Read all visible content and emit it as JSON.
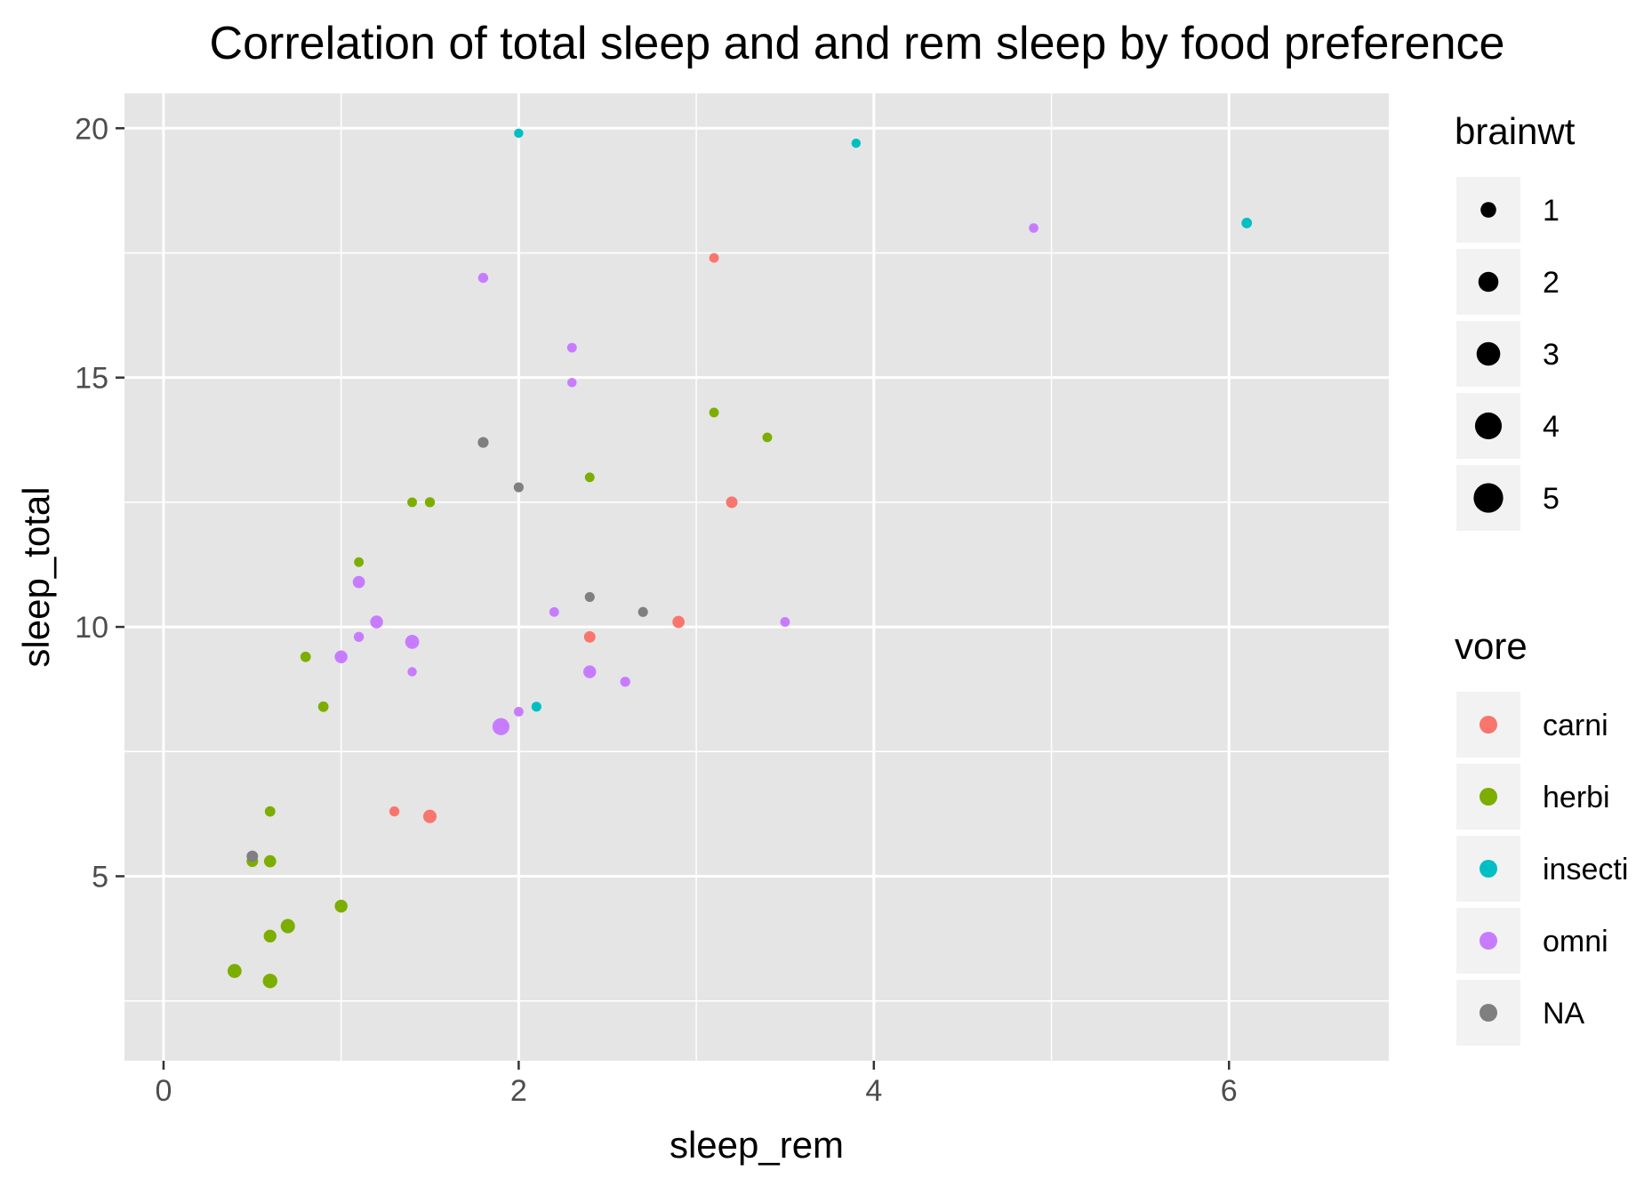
{
  "chart_data": {
    "type": "scatter",
    "title": "Correlation of total sleep and and rem sleep by food preference",
    "xlabel": "sleep_rem",
    "ylabel": "sleep_total",
    "xlim": [
      -0.22,
      6.9
    ],
    "ylim": [
      1.3,
      20.7
    ],
    "x_ticks": [
      0,
      2,
      4,
      6
    ],
    "y_ticks": [
      5,
      10,
      15,
      20
    ],
    "x_tick_labels": [
      "0",
      "2",
      "4",
      "6"
    ],
    "y_tick_labels": [
      "5",
      "10",
      "15",
      "20"
    ],
    "grid": true,
    "background": "#e5e5e5",
    "legend_position": "right",
    "size_legend": {
      "title": "brainwt",
      "values": [
        1,
        2,
        3,
        4,
        5
      ],
      "labels": [
        "1",
        "2",
        "3",
        "4",
        "5"
      ]
    },
    "color_legend": {
      "title": "vore",
      "categories": [
        "carni",
        "herbi",
        "insecti",
        "omni",
        "NA"
      ],
      "colors": [
        "#F8766D",
        "#7CAE00",
        "#00BFC4",
        "#C77CFF",
        "#7F7F7F"
      ]
    },
    "series": [
      {
        "name": "carni",
        "points": [
          {
            "x": 3.1,
            "y": 17.4,
            "brainwt": 0.04
          },
          {
            "x": 3.2,
            "y": 12.5,
            "brainwt": 0.3
          },
          {
            "x": 2.9,
            "y": 10.1,
            "brainwt": 0.4
          },
          {
            "x": 2.4,
            "y": 9.8,
            "brainwt": 0.3
          },
          {
            "x": 1.3,
            "y": 6.3,
            "brainwt": 0.1
          },
          {
            "x": 1.5,
            "y": 6.2,
            "brainwt": 0.6
          }
        ]
      },
      {
        "name": "herbi",
        "points": [
          {
            "x": 3.1,
            "y": 14.3,
            "brainwt": 0.05
          },
          {
            "x": 3.4,
            "y": 13.8,
            "brainwt": 0.05
          },
          {
            "x": 2.4,
            "y": 13.0,
            "brainwt": 0.05
          },
          {
            "x": 1.4,
            "y": 12.5,
            "brainwt": 0.05
          },
          {
            "x": 1.5,
            "y": 12.5,
            "brainwt": 0.1
          },
          {
            "x": 1.1,
            "y": 11.3,
            "brainwt": 0.05
          },
          {
            "x": 0.8,
            "y": 9.4,
            "brainwt": 0.15
          },
          {
            "x": 0.9,
            "y": 8.4,
            "brainwt": 0.15
          },
          {
            "x": 0.6,
            "y": 6.3,
            "brainwt": 0.15
          },
          {
            "x": 0.5,
            "y": 5.3,
            "brainwt": 0.3
          },
          {
            "x": 0.6,
            "y": 5.3,
            "brainwt": 0.4
          },
          {
            "x": 1.0,
            "y": 4.4,
            "brainwt": 0.5
          },
          {
            "x": 0.7,
            "y": 4.0,
            "brainwt": 0.75
          },
          {
            "x": 0.6,
            "y": 3.8,
            "brainwt": 0.5
          },
          {
            "x": 0.4,
            "y": 3.1,
            "brainwt": 0.7
          },
          {
            "x": 0.6,
            "y": 2.9,
            "brainwt": 0.8
          }
        ]
      },
      {
        "name": "insecti",
        "points": [
          {
            "x": 2.0,
            "y": 19.9,
            "brainwt": 0.001
          },
          {
            "x": 3.9,
            "y": 19.7,
            "brainwt": 0.001
          },
          {
            "x": 6.1,
            "y": 18.1,
            "brainwt": 0.15
          },
          {
            "x": 2.1,
            "y": 8.4,
            "brainwt": 0.08
          }
        ]
      },
      {
        "name": "omni",
        "points": [
          {
            "x": 4.9,
            "y": 18.0,
            "brainwt": 0.03
          },
          {
            "x": 1.8,
            "y": 17.0,
            "brainwt": 0.1
          },
          {
            "x": 2.3,
            "y": 15.6,
            "brainwt": 0.05
          },
          {
            "x": 2.3,
            "y": 14.9,
            "brainwt": 0.01
          },
          {
            "x": 1.1,
            "y": 10.9,
            "brainwt": 0.4
          },
          {
            "x": 1.2,
            "y": 10.1,
            "brainwt": 0.5
          },
          {
            "x": 2.2,
            "y": 10.3,
            "brainwt": 0.05
          },
          {
            "x": 3.5,
            "y": 10.1,
            "brainwt": 0.05
          },
          {
            "x": 1.1,
            "y": 9.8,
            "brainwt": 0.1
          },
          {
            "x": 1.4,
            "y": 9.7,
            "brainwt": 0.7
          },
          {
            "x": 1.0,
            "y": 9.4,
            "brainwt": 0.5
          },
          {
            "x": 1.4,
            "y": 9.1,
            "brainwt": 0.01
          },
          {
            "x": 2.4,
            "y": 9.1,
            "brainwt": 0.5
          },
          {
            "x": 2.6,
            "y": 8.9,
            "brainwt": 0.1
          },
          {
            "x": 2.0,
            "y": 8.3,
            "brainwt": 0.05
          },
          {
            "x": 1.9,
            "y": 8.0,
            "brainwt": 1.3
          }
        ]
      },
      {
        "name": "NA",
        "points": [
          {
            "x": 1.8,
            "y": 13.7,
            "brainwt": 0.2
          },
          {
            "x": 2.0,
            "y": 12.8,
            "brainwt": 0.08
          },
          {
            "x": 2.4,
            "y": 10.6,
            "brainwt": 0.08
          },
          {
            "x": 2.7,
            "y": 10.3,
            "brainwt": 0.08
          },
          {
            "x": 0.5,
            "y": 5.4,
            "brainwt": 0.3
          }
        ]
      }
    ]
  }
}
